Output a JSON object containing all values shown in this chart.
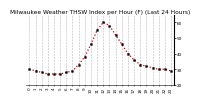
{
  "title": "Milwaukee Weather THSW Index per Hour (F) (Last 24 Hours)",
  "hours": [
    0,
    1,
    2,
    3,
    4,
    5,
    6,
    7,
    8,
    9,
    10,
    11,
    12,
    13,
    14,
    15,
    16,
    17,
    18,
    19,
    20,
    21,
    22,
    23
  ],
  "values": [
    30,
    29,
    28,
    27,
    27,
    27,
    28,
    29,
    33,
    38,
    46,
    55,
    60,
    58,
    52,
    46,
    40,
    36,
    33,
    32,
    31,
    30,
    30,
    29
  ],
  "line_color": "#cc0000",
  "marker_color": "#000000",
  "bg_color": "#ffffff",
  "grid_color": "#888888",
  "ylim": [
    22,
    65
  ],
  "yticks": [
    20,
    30,
    40,
    50,
    60
  ],
  "ytick_labels": [
    "20",
    "30",
    "40",
    "50",
    "60"
  ],
  "title_fontsize": 4.2,
  "tick_fontsize": 3.0
}
